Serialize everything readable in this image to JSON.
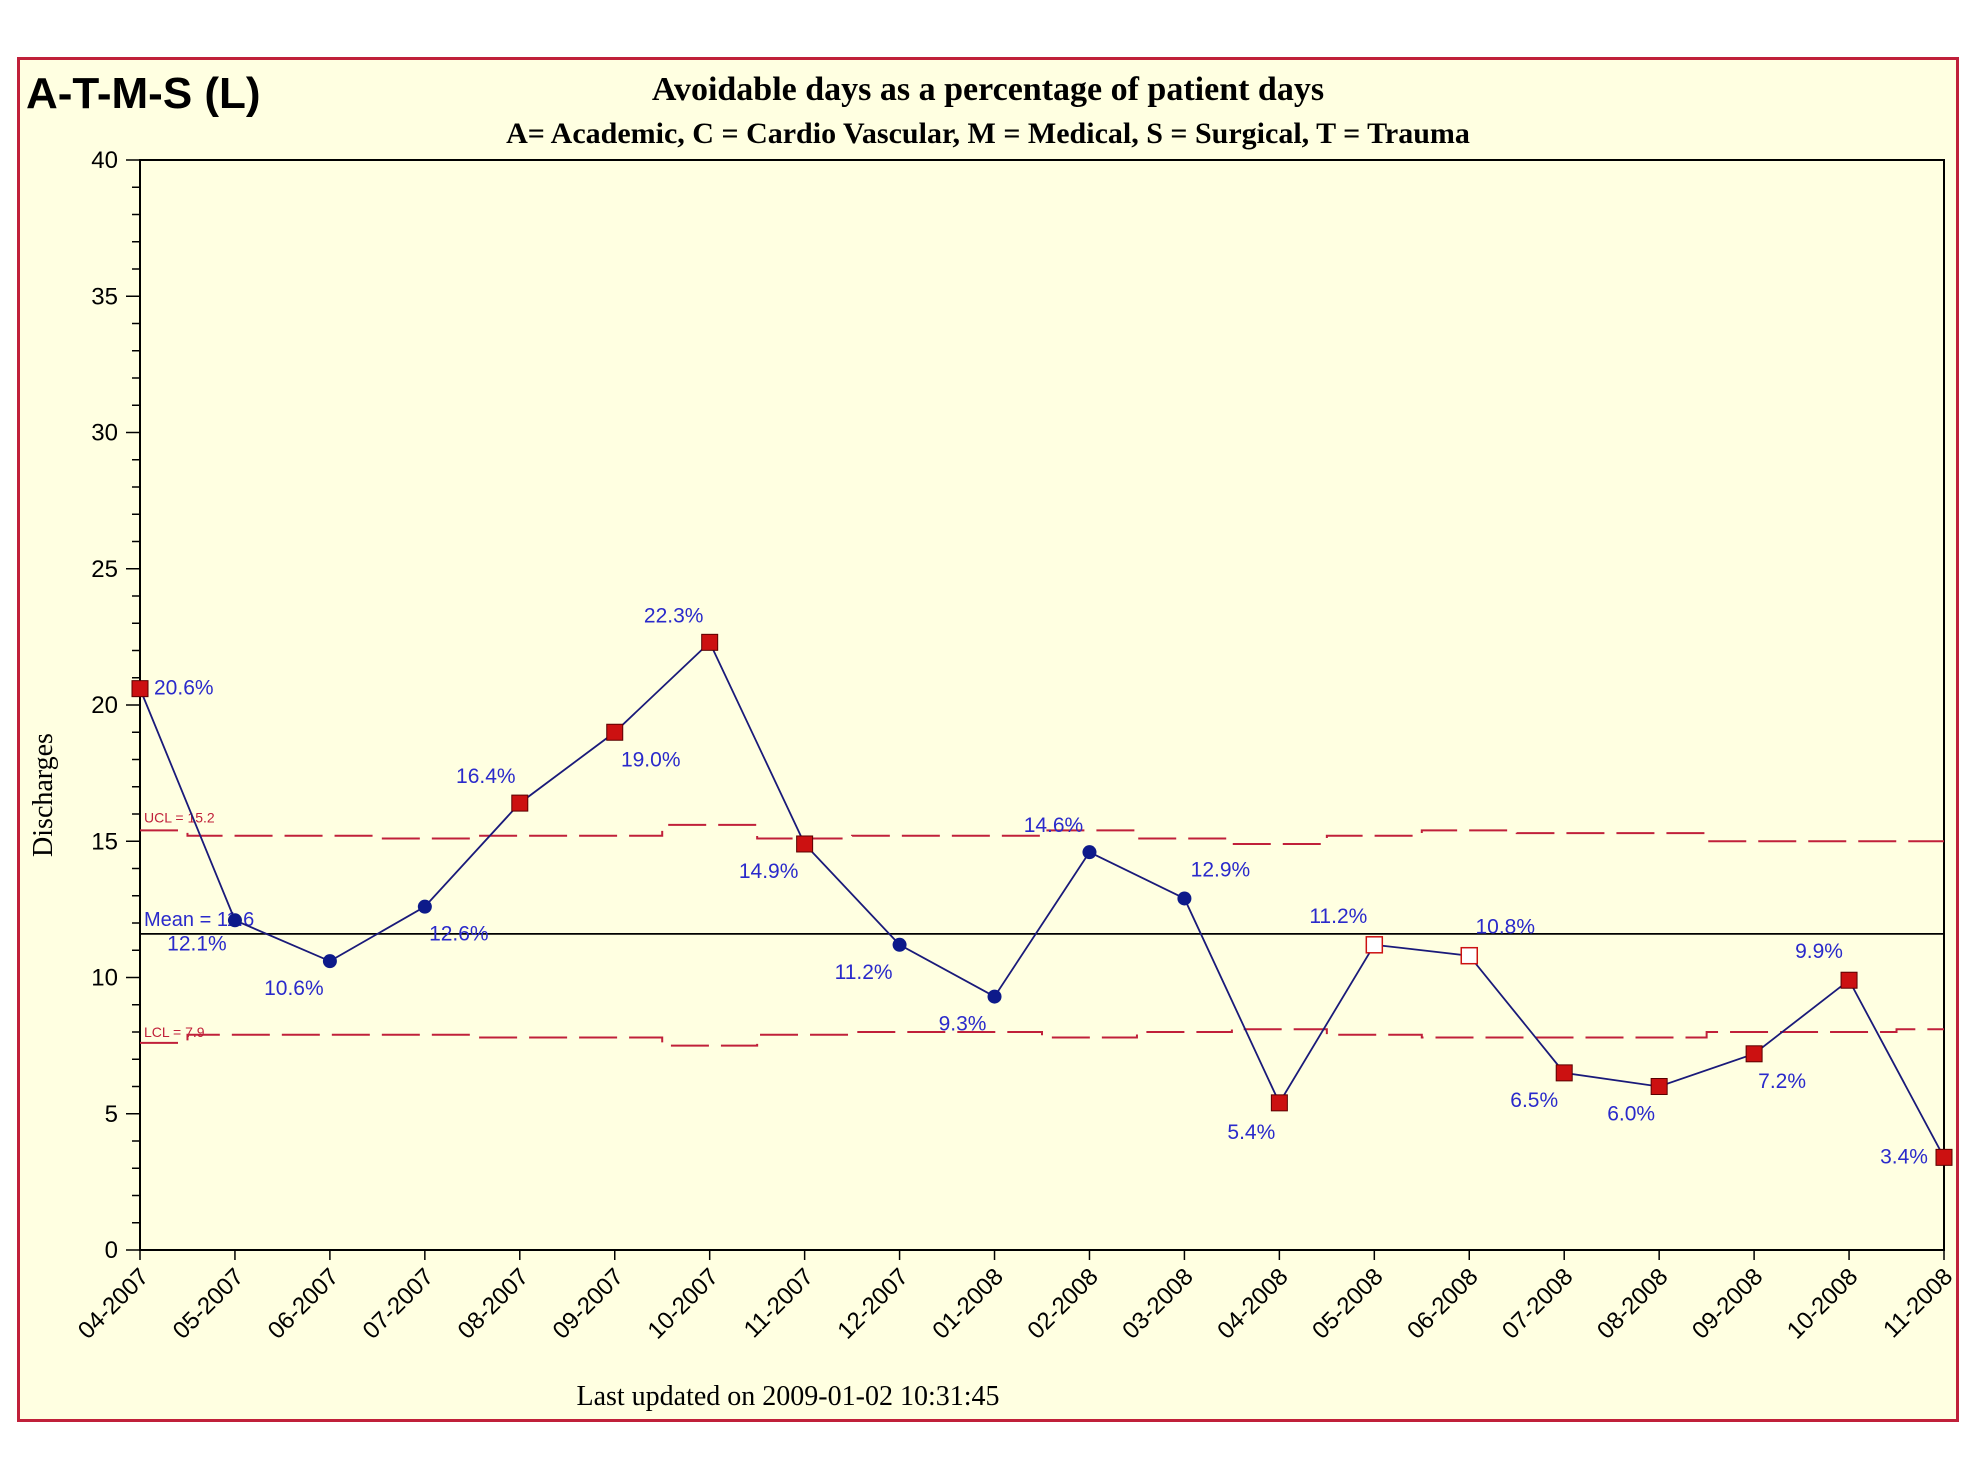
{
  "header": {
    "corner_title": "A-T-M-S (L)",
    "title": "Avoidable days as a percentage of patient days",
    "subtitle": "A= Academic, C = Cardio Vascular, M = Medical, S = Surgical, T = Trauma"
  },
  "footer": {
    "last_updated": "Last updated on 2009-01-02 10:31:45"
  },
  "colors": {
    "frame_border": "#c0203a",
    "background": "#ffffe1",
    "series_line": "#1a1a7a",
    "in_control_marker": "#0d1a8a",
    "out_of_control_marker": "#cc1111",
    "open_marker": "#ffffff",
    "limit_line": "#c0203a",
    "label_text": "#2a2acb"
  },
  "chart_data": {
    "type": "line",
    "ylabel": "Discharges",
    "xlabel": "",
    "ylim": [
      0,
      40
    ],
    "yticks": [
      0,
      5,
      10,
      15,
      20,
      25,
      30,
      35,
      40
    ],
    "grid": false,
    "categories": [
      "04-2007",
      "05-2007",
      "06-2007",
      "07-2007",
      "08-2007",
      "09-2007",
      "10-2007",
      "11-2007",
      "12-2007",
      "01-2008",
      "02-2008",
      "03-2008",
      "04-2008",
      "05-2008",
      "06-2008",
      "07-2008",
      "08-2008",
      "09-2008",
      "10-2008",
      "11-2008"
    ],
    "values": [
      20.6,
      12.1,
      10.6,
      12.6,
      16.4,
      19.0,
      22.3,
      14.9,
      11.2,
      9.3,
      14.6,
      12.9,
      5.4,
      11.2,
      10.8,
      6.5,
      6.0,
      7.2,
      9.9,
      3.4
    ],
    "point_labels": [
      "20.6%",
      "12.1%",
      "10.6%",
      "12.6%",
      "16.4%",
      "19.0%",
      "22.3%",
      "14.9%",
      "11.2%",
      "9.3%",
      "14.6%",
      "12.9%",
      "5.4%",
      "11.2%",
      "10.8%",
      "6.5%",
      "6.0%",
      "7.2%",
      "9.9%",
      "3.4%"
    ],
    "marker_types": [
      "square",
      "circle",
      "circle",
      "circle",
      "square",
      "square",
      "square",
      "square",
      "circle",
      "circle",
      "circle",
      "circle",
      "square",
      "open-square",
      "open-square",
      "square",
      "square",
      "square",
      "square",
      "square"
    ],
    "mean": {
      "value": 11.6,
      "label": "Mean = 11.6"
    },
    "ucl": {
      "label": "UCL = 15.2",
      "values": [
        15.4,
        15.2,
        15.2,
        15.1,
        15.2,
        15.2,
        15.6,
        15.1,
        15.2,
        15.2,
        15.4,
        15.1,
        14.9,
        15.2,
        15.4,
        15.3,
        15.3,
        15.0,
        15.0,
        15.0
      ]
    },
    "lcl": {
      "label": "LCL = 7.9",
      "values": [
        7.6,
        7.9,
        7.9,
        7.9,
        7.8,
        7.8,
        7.5,
        7.9,
        8.0,
        8.0,
        7.8,
        8.0,
        8.1,
        7.9,
        7.8,
        7.8,
        7.8,
        8.0,
        8.0,
        8.1
      ]
    }
  }
}
